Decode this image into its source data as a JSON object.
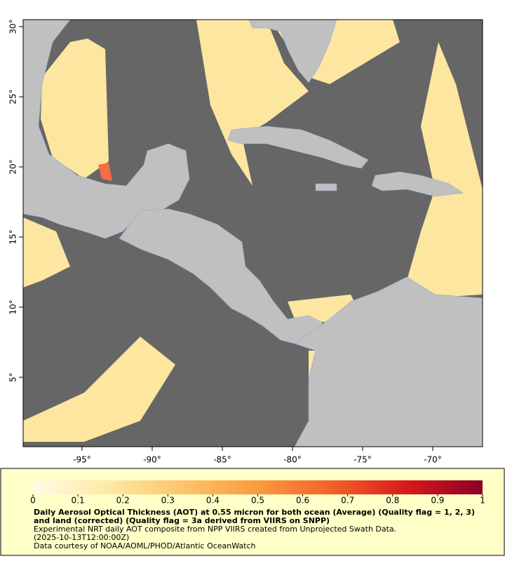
{
  "map": {
    "xlim": [
      -99.2,
      -66.45
    ],
    "ylim": [
      0.05,
      30.5
    ],
    "xticks": [
      {
        "value": -95,
        "label": "-95°"
      },
      {
        "value": -90,
        "label": "-90°"
      },
      {
        "value": -85,
        "label": "-85°"
      },
      {
        "value": -80,
        "label": "-80°"
      },
      {
        "value": -75,
        "label": "-75°"
      },
      {
        "value": -70,
        "label": "-70°"
      }
    ],
    "yticks": [
      {
        "value": 5,
        "label": "5°"
      },
      {
        "value": 10,
        "label": "10°"
      },
      {
        "value": 15,
        "label": "15°"
      },
      {
        "value": 20,
        "label": "20°"
      },
      {
        "value": 25,
        "label": "25°"
      },
      {
        "value": 30,
        "label": "30°"
      }
    ],
    "ocean_color": "#666666",
    "land_color": "#c0c0c0"
  },
  "colorbar": {
    "lim": [
      0,
      1
    ],
    "ticks": [
      0,
      0.1,
      0.2,
      0.3,
      0.4,
      0.5,
      0.6,
      0.7,
      0.8,
      0.9,
      1
    ],
    "colors": [
      "#fffbe6",
      "#fde9a6",
      "#fdc46a",
      "#fb9a3f",
      "#f2612a",
      "#d7191c",
      "#8b0026"
    ]
  },
  "caption": {
    "title": "Daily Aerosol Optical Thickness (AOT) at 0.55 micron for both ocean (Average) (Quality flag = 1, 2, 3) and land (corrected) (Quality flag = 3a derived from VIIRS on SNPP)",
    "lines": [
      "Experimental NRT daily AOT composite from NPP VIIRS created from Unprojected Swath Data.",
      "(2025-10-13T12:00:00Z)",
      "Data courtesy of NOAA/AOML/PHOD/Atlantic OceanWatch"
    ]
  }
}
